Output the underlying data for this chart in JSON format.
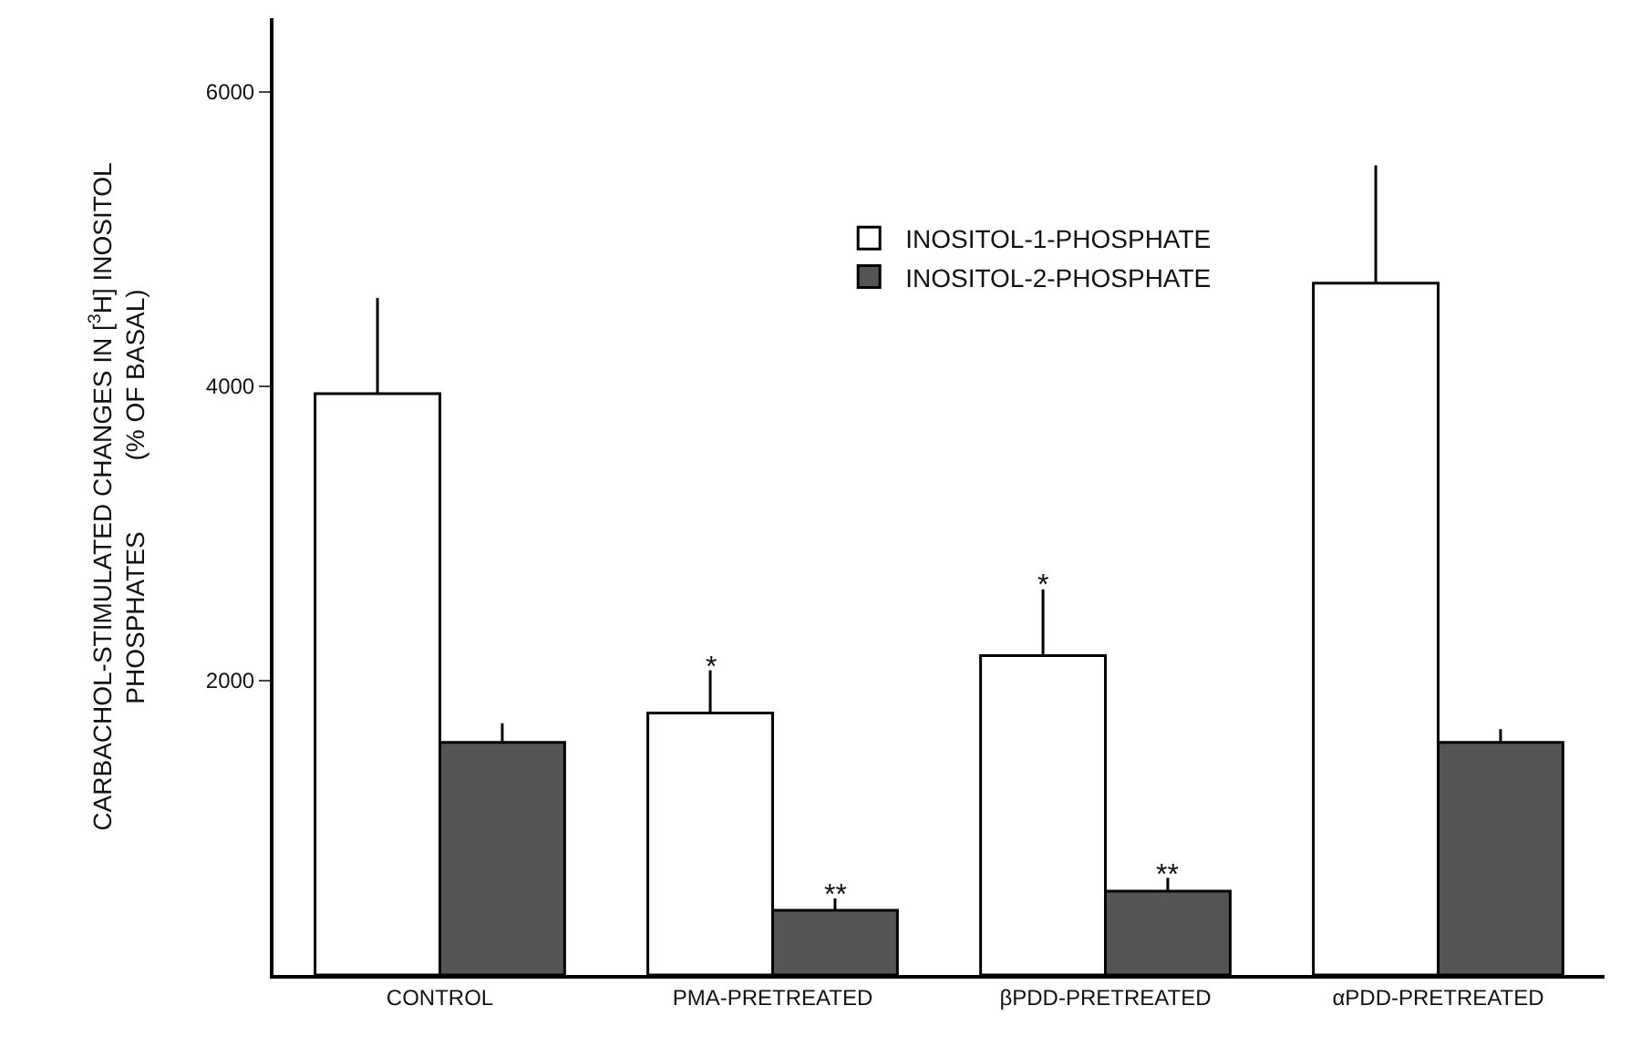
{
  "chart_data": {
    "type": "bar",
    "ylabel": "CARBACHOL-STIMULATED CHANGES IN [$^{3}$H] INOSITOL\nPHOSPHATES          (% OF BASAL)",
    "categories": [
      "CONTROL",
      "PMA-PRETREATED",
      "βPDD-PRETREATED",
      "αPDD-PRETREATED"
    ],
    "series": [
      {
        "name": "INOSITOL-1-PHOSPHATE",
        "color": "#ffffff",
        "values": [
          3950,
          1780,
          2170,
          4700
        ],
        "errors": [
          [
            3950,
            4600
          ],
          [
            1780,
            2070
          ],
          [
            2170,
            2620
          ],
          [
            4700,
            5500
          ]
        ]
      },
      {
        "name": "INOSITOL-2-PHOSPHATE",
        "color": "#555555",
        "values": [
          1580,
          440,
          570,
          1580
        ],
        "errors": [
          [
            1580,
            1710
          ],
          [
            440,
            520
          ],
          [
            570,
            660
          ],
          [
            1580,
            1670
          ]
        ]
      }
    ],
    "ylim": [
      0,
      6500
    ],
    "yticks": [
      2000,
      4000,
      6000
    ],
    "grid": false,
    "legend": "top",
    "annotations": [
      {
        "text": "*",
        "x": "PMA-PRETREATED",
        "y": 1780
      },
      {
        "text": "**",
        "x": "PMA-PRETREATED",
        "y": 440
      },
      {
        "text": "*",
        "x": "βPDD-PRETREATED",
        "y": 2170
      },
      {
        "text": "**",
        "x": "βPDD-PRETREATED",
        "y": 570
      }
    ]
  }
}
